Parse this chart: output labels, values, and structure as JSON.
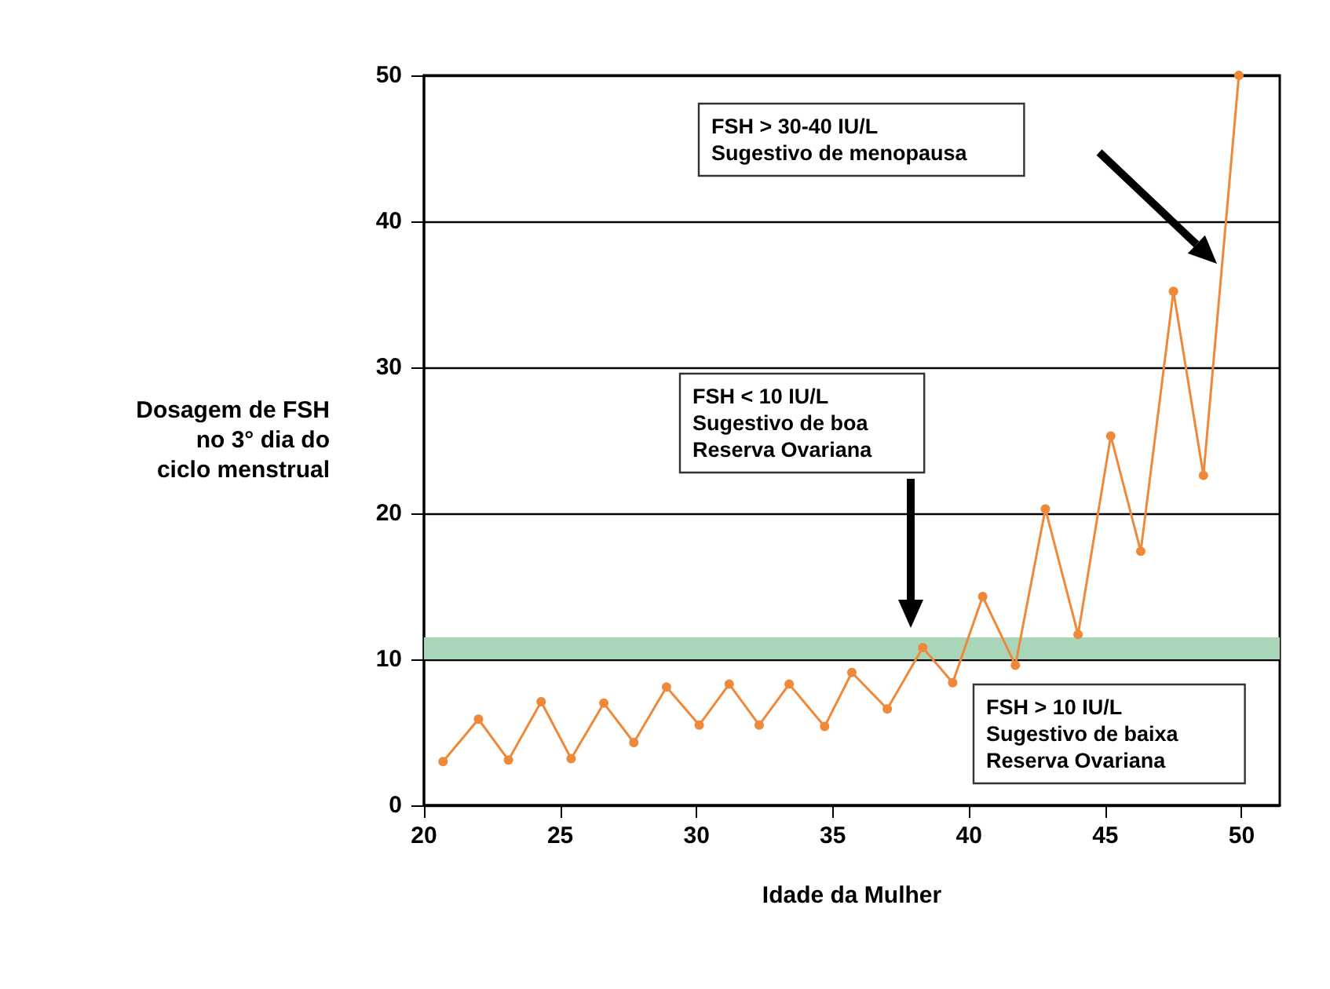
{
  "chart_data": {
    "type": "line",
    "xlabel": "Idade da Mulher",
    "ylabel": "Dosagem de FSH\n no 3° dia do\nciclo menstrual",
    "x": [
      20.7,
      22.0,
      23.1,
      24.3,
      25.4,
      26.6,
      27.7,
      28.9,
      30.1,
      31.2,
      32.3,
      33.4,
      34.7,
      35.7,
      37.0,
      38.3,
      39.4,
      40.5,
      41.7,
      42.8,
      44.0,
      45.2,
      46.3,
      47.5,
      48.6,
      49.9
    ],
    "series": [
      {
        "color": "#f0883a",
        "values": [
          3.0,
          5.9,
          3.1,
          7.1,
          3.2,
          7.0,
          4.3,
          8.1,
          5.5,
          8.3,
          5.5,
          8.3,
          5.4,
          9.1,
          6.6,
          10.8,
          8.4,
          14.3,
          9.6,
          20.3,
          11.7,
          25.3,
          17.4,
          35.2,
          22.6,
          50
        ]
      }
    ],
    "xlim": [
      20,
      51.4
    ],
    "xticks": [
      20,
      25,
      30,
      35,
      40,
      45,
      50
    ],
    "ylim": [
      0,
      50
    ],
    "yticks": [
      0,
      10,
      20,
      30,
      40,
      50
    ],
    "grid": "y",
    "marker": "circle",
    "line_style": "solid",
    "bands": [
      {
        "axis": "y",
        "from": 10,
        "to": 11.5,
        "color": "#a9d6b8"
      }
    ],
    "annotations": [
      "FSH > 30-40 IU/L\nSugestivo de menopausa",
      "FSH < 10 IU/L\nSugestivo de boa\nReserva Ovariana",
      "FSH > 10 IU/L\nSugestivo de baixa\nReserva Ovariana"
    ]
  }
}
